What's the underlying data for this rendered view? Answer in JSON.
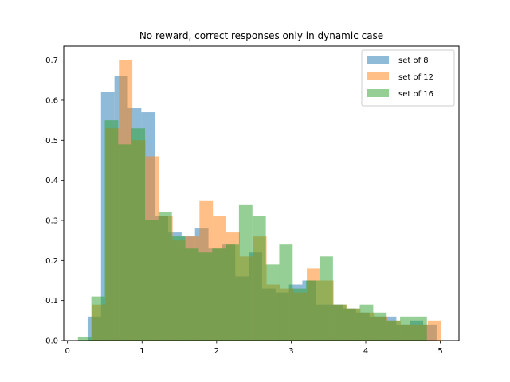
{
  "chart_data": {
    "type": "histogram",
    "title": "No reward, correct responses only in dynamic case",
    "xlabel": "",
    "ylabel": "",
    "xlim": [
      -0.05,
      5.25
    ],
    "ylim": [
      0,
      0.735
    ],
    "xticks": [
      0,
      1,
      2,
      3,
      4,
      5
    ],
    "yticks": [
      0.0,
      0.1,
      0.2,
      0.3,
      0.4,
      0.5,
      0.6,
      0.7
    ],
    "xtick_labels": [
      "0",
      "1",
      "2",
      "3",
      "4",
      "5"
    ],
    "ytick_labels": [
      "0.0",
      "0.1",
      "0.2",
      "0.3",
      "0.4",
      "0.5",
      "0.6",
      "0.7"
    ],
    "grid": false,
    "legend_position": "top-right",
    "series": [
      {
        "name": "set of 8",
        "color": "#1f77b4",
        "bin_edges": [
          0.27,
          0.45,
          0.63,
          0.81,
          0.99,
          1.17,
          1.35,
          1.53,
          1.71,
          1.89,
          2.07,
          2.25,
          2.43,
          2.61,
          2.79,
          2.97,
          3.15,
          3.33,
          3.51,
          3.69,
          3.87,
          4.05,
          4.23,
          4.41,
          4.59,
          4.77,
          4.95
        ],
        "values": [
          0.06,
          0.62,
          0.66,
          0.58,
          0.57,
          0.31,
          0.27,
          0.26,
          0.28,
          0.23,
          0.24,
          0.16,
          0.22,
          0.13,
          0.12,
          0.14,
          0.15,
          0.09,
          0.09,
          0.08,
          0.07,
          0.06,
          0.06,
          0.04,
          0.05,
          0.04
        ]
      },
      {
        "name": "set of 12",
        "color": "#ff7f0e",
        "bin_edges": [
          0.33,
          0.51,
          0.69,
          0.87,
          1.05,
          1.23,
          1.41,
          1.59,
          1.77,
          1.95,
          2.13,
          2.31,
          2.49,
          2.67,
          2.85,
          3.03,
          3.21,
          3.39,
          3.57,
          3.75,
          3.93,
          4.11,
          4.29,
          4.47,
          4.65,
          4.83,
          5.01
        ],
        "values": [
          0.09,
          0.53,
          0.7,
          0.5,
          0.46,
          0.31,
          0.25,
          0.26,
          0.35,
          0.31,
          0.27,
          0.21,
          0.26,
          0.14,
          0.13,
          0.12,
          0.18,
          0.15,
          0.09,
          0.08,
          0.07,
          0.06,
          0.05,
          0.04,
          0.04,
          0.05
        ]
      },
      {
        "name": "set of 16",
        "color": "#2ca02c",
        "bin_edges": [
          0.14,
          0.32,
          0.5,
          0.68,
          0.86,
          1.04,
          1.22,
          1.4,
          1.58,
          1.76,
          1.94,
          2.12,
          2.3,
          2.48,
          2.66,
          2.84,
          3.02,
          3.2,
          3.38,
          3.56,
          3.74,
          3.92,
          4.1,
          4.28,
          4.46,
          4.64,
          4.82
        ],
        "values": [
          0.01,
          0.11,
          0.55,
          0.49,
          0.53,
          0.3,
          0.32,
          0.26,
          0.23,
          0.22,
          0.23,
          0.24,
          0.34,
          0.31,
          0.19,
          0.24,
          0.13,
          0.15,
          0.21,
          0.09,
          0.08,
          0.09,
          0.07,
          0.05,
          0.06,
          0.06
        ]
      }
    ]
  }
}
